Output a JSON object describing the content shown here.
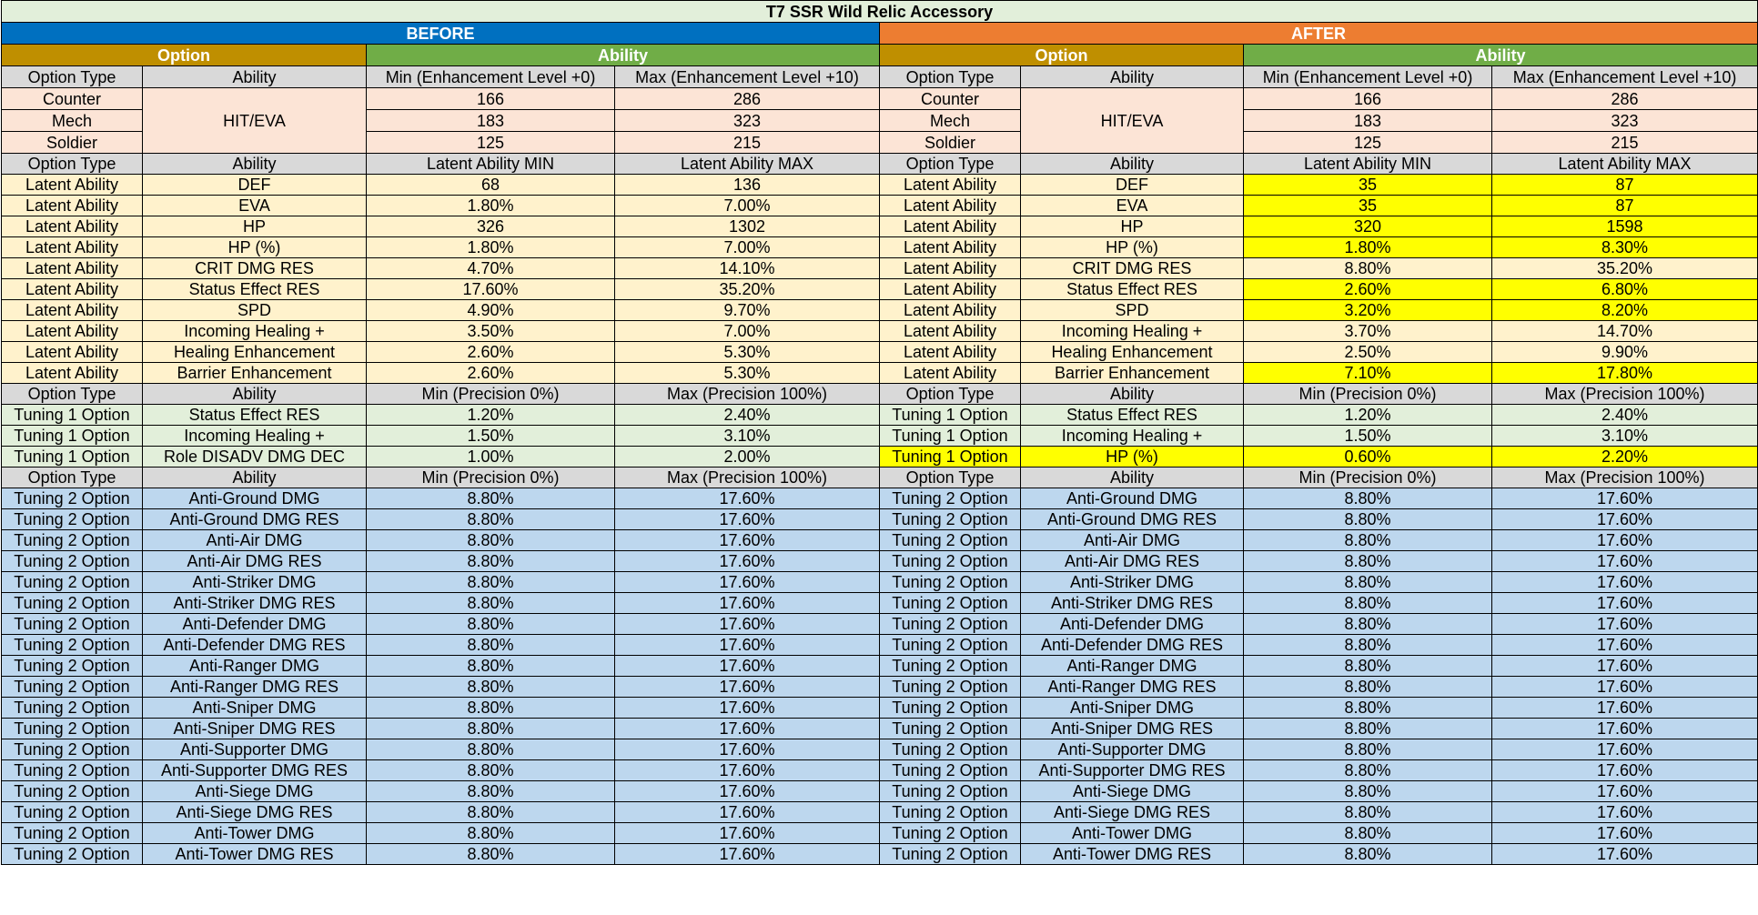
{
  "title": "T7 SSR Wild Relic Accessory",
  "groups": {
    "before": "BEFORE",
    "after": "AFTER"
  },
  "subgroups": {
    "option": "Option",
    "ability": "Ability"
  },
  "headers": {
    "option_type": "Option Type",
    "ability": "Ability",
    "base_min": "Min (Enhancement Level +0)",
    "base_max": "Max (Enhancement Level +10)",
    "latent_min": "Latent Ability MIN",
    "latent_max": "Latent Ability MAX",
    "precision_min": "Min (Precision 0%)",
    "precision_max": "Max (Precision 100%)"
  },
  "base_ability": "HIT/EVA",
  "base_rows": [
    {
      "type": "Counter",
      "min": "166",
      "max": "286"
    },
    {
      "type": "Mech",
      "min": "183",
      "max": "323"
    },
    {
      "type": "Soldier",
      "min": "125",
      "max": "215"
    }
  ],
  "before": {
    "latent": [
      {
        "type": "Latent Ability",
        "ability": "DEF",
        "min": "68",
        "max": "136"
      },
      {
        "type": "Latent Ability",
        "ability": "EVA",
        "min": "1.80%",
        "max": "7.00%"
      },
      {
        "type": "Latent Ability",
        "ability": "HP",
        "min": "326",
        "max": "1302"
      },
      {
        "type": "Latent Ability",
        "ability": "HP (%)",
        "min": "1.80%",
        "max": "7.00%"
      },
      {
        "type": "Latent Ability",
        "ability": "CRIT DMG RES",
        "min": "4.70%",
        "max": "14.10%"
      },
      {
        "type": "Latent Ability",
        "ability": "Status Effect RES",
        "min": "17.60%",
        "max": "35.20%"
      },
      {
        "type": "Latent Ability",
        "ability": "SPD",
        "min": "4.90%",
        "max": "9.70%"
      },
      {
        "type": "Latent Ability",
        "ability": "Incoming Healing +",
        "min": "3.50%",
        "max": "7.00%"
      },
      {
        "type": "Latent Ability",
        "ability": "Healing Enhancement",
        "min": "2.60%",
        "max": "5.30%"
      },
      {
        "type": "Latent Ability",
        "ability": "Barrier Enhancement",
        "min": "2.60%",
        "max": "5.30%"
      }
    ],
    "tuning1": [
      {
        "type": "Tuning 1 Option",
        "ability": "Status Effect RES",
        "min": "1.20%",
        "max": "2.40%"
      },
      {
        "type": "Tuning 1 Option",
        "ability": "Incoming Healing +",
        "min": "1.50%",
        "max": "3.10%"
      },
      {
        "type": "Tuning 1 Option",
        "ability": "Role DISADV DMG DEC",
        "min": "1.00%",
        "max": "2.00%"
      }
    ]
  },
  "after": {
    "latent": [
      {
        "type": "Latent Ability",
        "ability": "DEF",
        "min": "35",
        "max": "87",
        "highlight": true
      },
      {
        "type": "Latent Ability",
        "ability": "EVA",
        "min": "35",
        "max": "87",
        "highlight": true
      },
      {
        "type": "Latent Ability",
        "ability": "HP",
        "min": "320",
        "max": "1598",
        "highlight": true
      },
      {
        "type": "Latent Ability",
        "ability": "HP (%)",
        "min": "1.80%",
        "max": "8.30%",
        "highlight": true
      },
      {
        "type": "Latent Ability",
        "ability": "CRIT DMG RES",
        "min": "8.80%",
        "max": "35.20%",
        "highlight": false
      },
      {
        "type": "Latent Ability",
        "ability": "Status Effect RES",
        "min": "2.60%",
        "max": "6.80%",
        "highlight": true
      },
      {
        "type": "Latent Ability",
        "ability": "SPD",
        "min": "3.20%",
        "max": "8.20%",
        "highlight": true
      },
      {
        "type": "Latent Ability",
        "ability": "Incoming Healing +",
        "min": "3.70%",
        "max": "14.70%",
        "highlight": false
      },
      {
        "type": "Latent Ability",
        "ability": "Healing Enhancement",
        "min": "2.50%",
        "max": "9.90%",
        "highlight": false
      },
      {
        "type": "Latent Ability",
        "ability": "Barrier Enhancement",
        "min": "7.10%",
        "max": "17.80%",
        "highlight": true
      }
    ],
    "tuning1": [
      {
        "type": "Tuning 1 Option",
        "ability": "Status Effect RES",
        "min": "1.20%",
        "max": "2.40%",
        "highlight_row": false
      },
      {
        "type": "Tuning 1 Option",
        "ability": "Incoming Healing +",
        "min": "1.50%",
        "max": "3.10%",
        "highlight_row": false
      },
      {
        "type": "Tuning 1 Option",
        "ability": "HP (%)",
        "min": "0.60%",
        "max": "2.20%",
        "highlight_row": true
      }
    ]
  },
  "tuning2": [
    {
      "type": "Tuning 2 Option",
      "ability": "Anti-Ground DMG",
      "min": "8.80%",
      "max": "17.60%"
    },
    {
      "type": "Tuning 2 Option",
      "ability": "Anti-Ground DMG RES",
      "min": "8.80%",
      "max": "17.60%"
    },
    {
      "type": "Tuning 2 Option",
      "ability": "Anti-Air DMG",
      "min": "8.80%",
      "max": "17.60%"
    },
    {
      "type": "Tuning 2 Option",
      "ability": "Anti-Air DMG RES",
      "min": "8.80%",
      "max": "17.60%"
    },
    {
      "type": "Tuning 2 Option",
      "ability": "Anti-Striker DMG",
      "min": "8.80%",
      "max": "17.60%"
    },
    {
      "type": "Tuning 2 Option",
      "ability": "Anti-Striker DMG RES",
      "min": "8.80%",
      "max": "17.60%"
    },
    {
      "type": "Tuning 2 Option",
      "ability": "Anti-Defender DMG",
      "min": "8.80%",
      "max": "17.60%"
    },
    {
      "type": "Tuning 2 Option",
      "ability": "Anti-Defender DMG RES",
      "min": "8.80%",
      "max": "17.60%"
    },
    {
      "type": "Tuning 2 Option",
      "ability": "Anti-Ranger DMG",
      "min": "8.80%",
      "max": "17.60%"
    },
    {
      "type": "Tuning 2 Option",
      "ability": "Anti-Ranger DMG RES",
      "min": "8.80%",
      "max": "17.60%"
    },
    {
      "type": "Tuning 2 Option",
      "ability": "Anti-Sniper DMG",
      "min": "8.80%",
      "max": "17.60%"
    },
    {
      "type": "Tuning 2 Option",
      "ability": "Anti-Sniper DMG RES",
      "min": "8.80%",
      "max": "17.60%"
    },
    {
      "type": "Tuning 2 Option",
      "ability": "Anti-Supporter DMG",
      "min": "8.80%",
      "max": "17.60%"
    },
    {
      "type": "Tuning 2 Option",
      "ability": "Anti-Supporter DMG RES",
      "min": "8.80%",
      "max": "17.60%"
    },
    {
      "type": "Tuning 2 Option",
      "ability": "Anti-Siege DMG",
      "min": "8.80%",
      "max": "17.60%"
    },
    {
      "type": "Tuning 2 Option",
      "ability": "Anti-Siege DMG RES",
      "min": "8.80%",
      "max": "17.60%"
    },
    {
      "type": "Tuning 2 Option",
      "ability": "Anti-Tower DMG",
      "min": "8.80%",
      "max": "17.60%"
    },
    {
      "type": "Tuning 2 Option",
      "ability": "Anti-Tower DMG RES",
      "min": "8.80%",
      "max": "17.60%"
    }
  ],
  "colors": {
    "before_header": "#0070c0",
    "after_header": "#ed7d31",
    "option_header": "#bf8f00",
    "ability_header": "#70ad47",
    "column_header": "#d9d9d9",
    "base_section": "#fce4d6",
    "latent_section": "#fff2cc",
    "tuning1_section": "#e2efda",
    "tuning2_section": "#bdd7ee",
    "highlight": "#ffff00"
  }
}
